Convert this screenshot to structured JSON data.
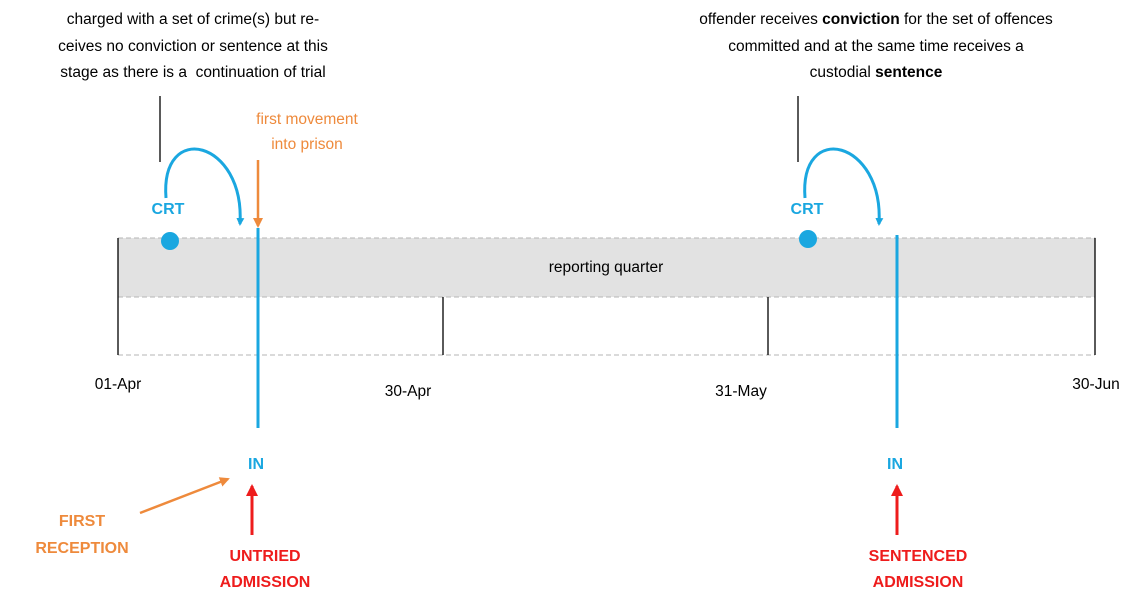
{
  "left_note": {
    "lines": [
      "charged with a set of crime(s) but re-",
      "ceives no conviction or sentence at this",
      "stage as there is a  continuation of trial"
    ]
  },
  "right_note": {
    "lines": [
      [
        "offender receives ",
        "conviction",
        " for the set of offences"
      ],
      [
        "committed and at the same time receives a"
      ],
      [
        "custodial ",
        "sentence"
      ]
    ]
  },
  "first_movement": {
    "lines": [
      "first movement",
      "into prison"
    ]
  },
  "court_labels": [
    "CRT",
    "CRT"
  ],
  "band_label": "reporting quarter",
  "dates": [
    "01-Apr",
    "30-Apr",
    "31-May",
    "30-Jun"
  ],
  "in_labels": [
    "IN",
    "IN"
  ],
  "first_reception": {
    "lines": [
      "FIRST",
      "RECEPTION"
    ]
  },
  "untried_admission": {
    "lines": [
      "UNTRIED",
      "ADMISSION"
    ]
  },
  "sentenced_admission": {
    "lines": [
      "SENTENCED",
      "ADMISSION"
    ]
  }
}
